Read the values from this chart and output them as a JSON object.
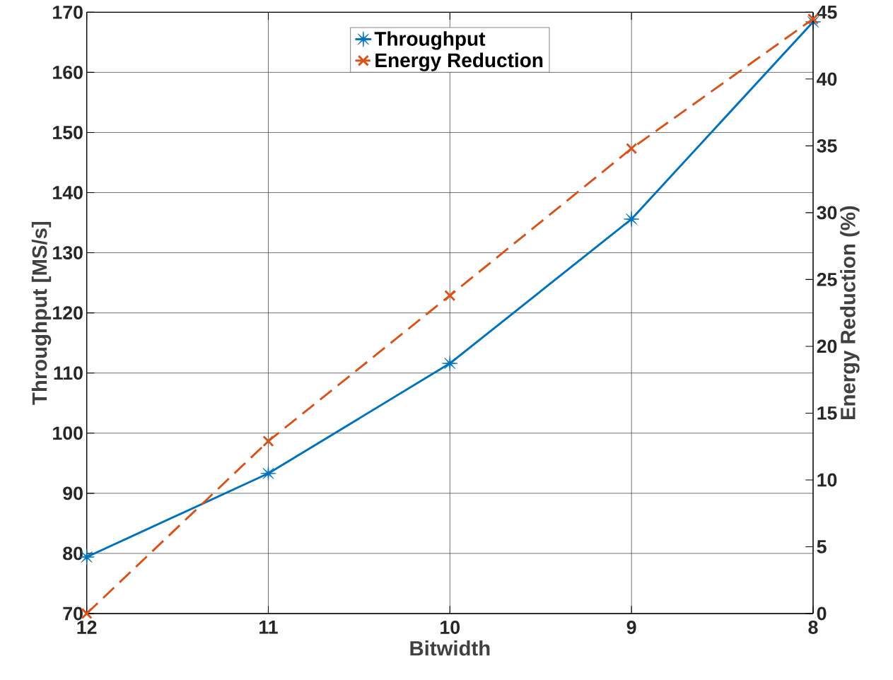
{
  "chart_data": {
    "type": "line",
    "xlabel": "Bitwidth",
    "ylabel": "Throughput [MS/s]",
    "y2label": "Energy Reduction (%)",
    "x": [
      12,
      11,
      10,
      9,
      8
    ],
    "xlim": [
      12,
      8
    ],
    "xticks": [
      12,
      11,
      10,
      9,
      8
    ],
    "ylim": [
      70,
      170
    ],
    "yticks": [
      70,
      80,
      90,
      100,
      110,
      120,
      130,
      140,
      150,
      160,
      170
    ],
    "y2lim": [
      0,
      45
    ],
    "y2ticks": [
      0,
      5,
      10,
      15,
      20,
      25,
      30,
      35,
      40,
      45
    ],
    "grid": true,
    "legend": "top",
    "series": [
      {
        "name": "Throughput",
        "color": "#0072bd",
        "marker": "star",
        "line_style": "solid",
        "values": [
          79.4,
          93.3,
          111.6,
          135.6,
          168.4
        ]
      },
      {
        "name": "Energy Reduction",
        "color": "#d95319",
        "marker": "cross",
        "line_style": "dashed",
        "axis": "y2",
        "values": [
          0,
          12.9,
          23.8,
          34.8,
          44.5
        ]
      }
    ]
  }
}
